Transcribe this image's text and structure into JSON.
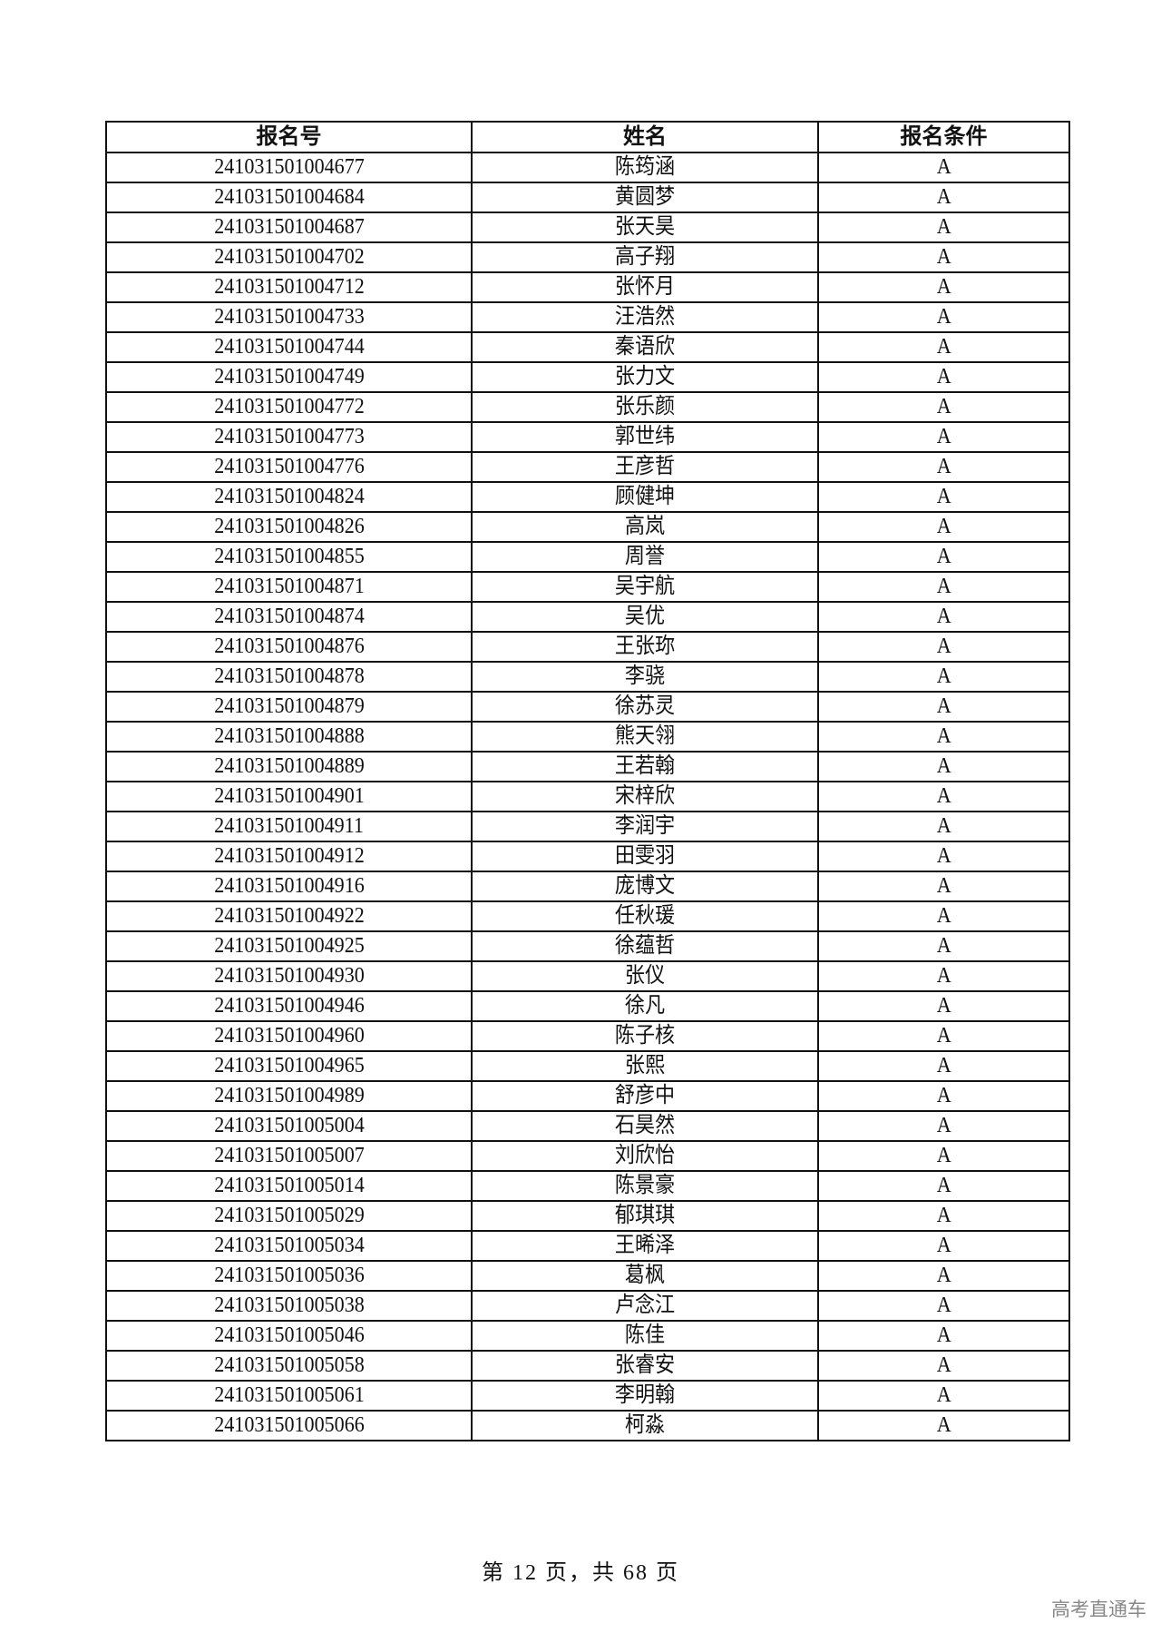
{
  "table": {
    "headers": [
      "报名号",
      "姓名",
      "报名条件"
    ],
    "rows": [
      [
        "241031501004677",
        "陈筠涵",
        "A"
      ],
      [
        "241031501004684",
        "黄圆梦",
        "A"
      ],
      [
        "241031501004687",
        "张天昊",
        "A"
      ],
      [
        "241031501004702",
        "高子翔",
        "A"
      ],
      [
        "241031501004712",
        "张怀月",
        "A"
      ],
      [
        "241031501004733",
        "汪浩然",
        "A"
      ],
      [
        "241031501004744",
        "秦语欣",
        "A"
      ],
      [
        "241031501004749",
        "张力文",
        "A"
      ],
      [
        "241031501004772",
        "张乐颜",
        "A"
      ],
      [
        "241031501004773",
        "郭世纬",
        "A"
      ],
      [
        "241031501004776",
        "王彦哲",
        "A"
      ],
      [
        "241031501004824",
        "顾健坤",
        "A"
      ],
      [
        "241031501004826",
        "高岚",
        "A"
      ],
      [
        "241031501004855",
        "周誉",
        "A"
      ],
      [
        "241031501004871",
        "吴宇航",
        "A"
      ],
      [
        "241031501004874",
        "吴优",
        "A"
      ],
      [
        "241031501004876",
        "王张珎",
        "A"
      ],
      [
        "241031501004878",
        "李骁",
        "A"
      ],
      [
        "241031501004879",
        "徐苏灵",
        "A"
      ],
      [
        "241031501004888",
        "熊天翎",
        "A"
      ],
      [
        "241031501004889",
        "王若翰",
        "A"
      ],
      [
        "241031501004901",
        "宋梓欣",
        "A"
      ],
      [
        "241031501004911",
        "李润宇",
        "A"
      ],
      [
        "241031501004912",
        "田雯羽",
        "A"
      ],
      [
        "241031501004916",
        "庞博文",
        "A"
      ],
      [
        "241031501004922",
        "任秋瑗",
        "A"
      ],
      [
        "241031501004925",
        "徐蕴哲",
        "A"
      ],
      [
        "241031501004930",
        "张仪",
        "A"
      ],
      [
        "241031501004946",
        "徐凡",
        "A"
      ],
      [
        "241031501004960",
        "陈子核",
        "A"
      ],
      [
        "241031501004965",
        "张熙",
        "A"
      ],
      [
        "241031501004989",
        "舒彦中",
        "A"
      ],
      [
        "241031501005004",
        "石昊然",
        "A"
      ],
      [
        "241031501005007",
        "刘欣怡",
        "A"
      ],
      [
        "241031501005014",
        "陈景豪",
        "A"
      ],
      [
        "241031501005029",
        "郁琪琪",
        "A"
      ],
      [
        "241031501005034",
        "王晞泽",
        "A"
      ],
      [
        "241031501005036",
        "葛枫",
        "A"
      ],
      [
        "241031501005038",
        "卢念江",
        "A"
      ],
      [
        "241031501005046",
        "陈佳",
        "A"
      ],
      [
        "241031501005058",
        "张睿安",
        "A"
      ],
      [
        "241031501005061",
        "李明翰",
        "A"
      ],
      [
        "241031501005066",
        "柯淼",
        "A"
      ]
    ]
  },
  "footer": {
    "page_text": "第 12 页，共 68 页"
  },
  "watermark": "高考直通车"
}
